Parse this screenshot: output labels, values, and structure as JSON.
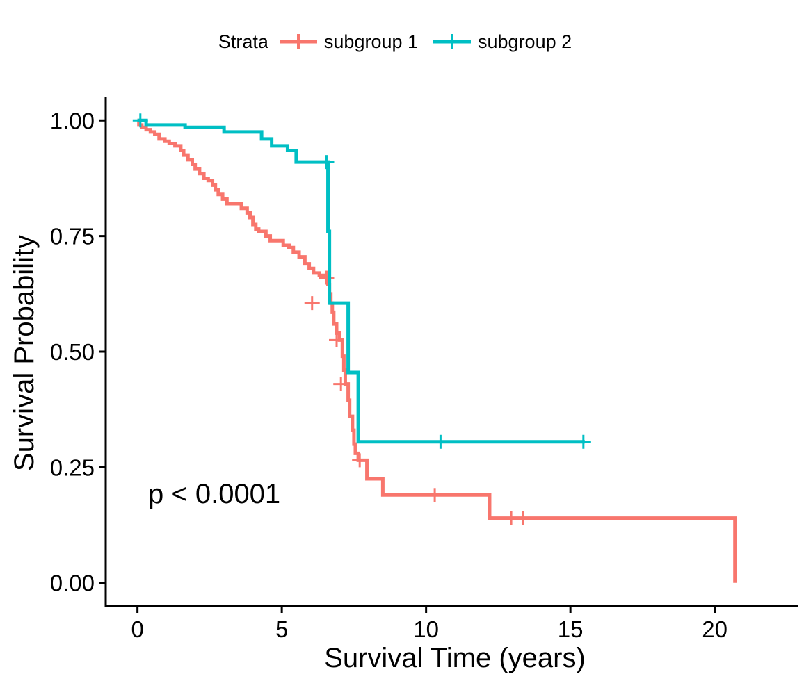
{
  "chart_data": {
    "type": "line",
    "subtype": "kaplan-meier step",
    "title": "",
    "xlabel": "Survival Time (years)",
    "ylabel": "Survival Probability",
    "xlim": [
      -1.1,
      22.9
    ],
    "ylim": [
      -0.05,
      1.05
    ],
    "xticks": [
      0,
      5,
      10,
      15,
      20
    ],
    "yticks": [
      0.0,
      0.25,
      0.5,
      0.75,
      1.0
    ],
    "xtick_labels": [
      "0",
      "5",
      "10",
      "15",
      "20"
    ],
    "ytick_labels": [
      "0.00",
      "0.25",
      "0.50",
      "0.75",
      "1.00"
    ],
    "grid": false,
    "legend": {
      "title": "Strata",
      "position": "top"
    },
    "annotation": "p < 0.0001",
    "series": [
      {
        "name": "subgroup 1",
        "color": "#F8766D",
        "steps": [
          [
            0,
            1.0
          ],
          [
            0.05,
            0.99
          ],
          [
            0.15,
            0.985
          ],
          [
            0.3,
            0.98
          ],
          [
            0.45,
            0.975
          ],
          [
            0.6,
            0.97
          ],
          [
            0.75,
            0.96
          ],
          [
            0.95,
            0.955
          ],
          [
            1.1,
            0.95
          ],
          [
            1.3,
            0.945
          ],
          [
            1.5,
            0.935
          ],
          [
            1.6,
            0.925
          ],
          [
            1.75,
            0.915
          ],
          [
            1.9,
            0.905
          ],
          [
            2.0,
            0.895
          ],
          [
            2.15,
            0.885
          ],
          [
            2.3,
            0.875
          ],
          [
            2.45,
            0.87
          ],
          [
            2.6,
            0.86
          ],
          [
            2.7,
            0.85
          ],
          [
            2.8,
            0.84
          ],
          [
            2.95,
            0.83
          ],
          [
            3.1,
            0.82
          ],
          [
            3.6,
            0.81
          ],
          [
            3.8,
            0.8
          ],
          [
            3.9,
            0.79
          ],
          [
            4.0,
            0.775
          ],
          [
            4.1,
            0.765
          ],
          [
            4.2,
            0.76
          ],
          [
            4.45,
            0.75
          ],
          [
            4.6,
            0.74
          ],
          [
            5.05,
            0.73
          ],
          [
            5.25,
            0.725
          ],
          [
            5.4,
            0.715
          ],
          [
            5.6,
            0.705
          ],
          [
            5.8,
            0.69
          ],
          [
            5.95,
            0.68
          ],
          [
            6.1,
            0.67
          ],
          [
            6.3,
            0.665
          ],
          [
            6.5,
            0.66
          ],
          [
            6.6,
            0.645
          ],
          [
            6.65,
            0.625
          ],
          [
            6.7,
            0.605
          ],
          [
            6.75,
            0.585
          ],
          [
            6.8,
            0.56
          ],
          [
            6.9,
            0.54
          ],
          [
            7.0,
            0.525
          ],
          [
            7.1,
            0.49
          ],
          [
            7.15,
            0.46
          ],
          [
            7.2,
            0.43
          ],
          [
            7.3,
            0.395
          ],
          [
            7.35,
            0.36
          ],
          [
            7.45,
            0.33
          ],
          [
            7.5,
            0.3
          ],
          [
            7.55,
            0.28
          ],
          [
            7.65,
            0.265
          ],
          [
            7.95,
            0.225
          ],
          [
            8.5,
            0.19
          ],
          [
            12.2,
            0.14
          ],
          [
            20.7,
            0.0
          ]
        ],
        "end_x": 20.7,
        "censored": [
          [
            6.55,
            0.66
          ],
          [
            6.05,
            0.605
          ],
          [
            6.9,
            0.525
          ],
          [
            7.05,
            0.43
          ],
          [
            7.7,
            0.265
          ],
          [
            10.3,
            0.19
          ],
          [
            12.95,
            0.14
          ],
          [
            13.35,
            0.14
          ]
        ]
      },
      {
        "name": "subgroup 2",
        "color": "#00BFC4",
        "steps": [
          [
            0,
            1.0
          ],
          [
            0.3,
            0.99
          ],
          [
            1.65,
            0.985
          ],
          [
            3.0,
            0.975
          ],
          [
            4.3,
            0.96
          ],
          [
            4.65,
            0.945
          ],
          [
            5.2,
            0.935
          ],
          [
            5.5,
            0.91
          ],
          [
            6.6,
            0.76
          ],
          [
            6.65,
            0.605
          ],
          [
            7.3,
            0.455
          ],
          [
            7.65,
            0.305
          ]
        ],
        "end_x": 15.5,
        "censored": [
          [
            0.1,
            1.0
          ],
          [
            6.55,
            0.91
          ],
          [
            10.5,
            0.305
          ],
          [
            15.45,
            0.305
          ]
        ]
      }
    ]
  }
}
